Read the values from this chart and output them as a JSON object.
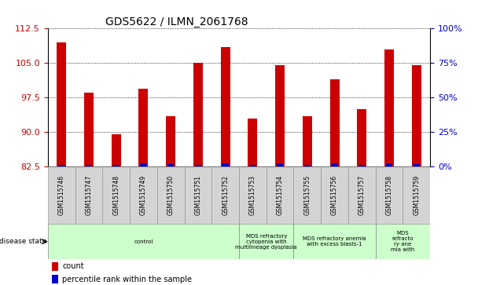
{
  "title": "GDS5622 / ILMN_2061768",
  "samples": [
    "GSM1515746",
    "GSM1515747",
    "GSM1515748",
    "GSM1515749",
    "GSM1515750",
    "GSM1515751",
    "GSM1515752",
    "GSM1515753",
    "GSM1515754",
    "GSM1515755",
    "GSM1515756",
    "GSM1515757",
    "GSM1515758",
    "GSM1515759"
  ],
  "counts": [
    109.5,
    98.5,
    89.5,
    99.5,
    93.5,
    105.0,
    108.5,
    93.0,
    104.5,
    93.5,
    101.5,
    95.0,
    108.0,
    104.5
  ],
  "percentiles": [
    1.5,
    1.5,
    1.5,
    2.5,
    2.0,
    1.5,
    2.5,
    1.5,
    2.5,
    1.5,
    2.5,
    1.5,
    2.5,
    2.0
  ],
  "ymin": 82.5,
  "ymax": 112.5,
  "yticks": [
    82.5,
    90.0,
    97.5,
    105.0,
    112.5
  ],
  "y2labels": [
    "0%",
    "25%",
    "50%",
    "75%",
    "100%"
  ],
  "bar_color": "#cc0000",
  "percentile_color": "#0000cc",
  "title_fontsize": 10,
  "tick_color_left": "#cc0000",
  "tick_color_right": "#0000cc",
  "disease_states": [
    {
      "label": "control",
      "start": 0,
      "end": 7
    },
    {
      "label": "MDS refractory\ncytopenia with\nmultilineage dysplasia",
      "start": 7,
      "end": 9
    },
    {
      "label": "MDS refractory anemia\nwith excess blasts-1",
      "start": 9,
      "end": 12
    },
    {
      "label": "MDS\nrefracto\nry ane\nmia with",
      "start": 12,
      "end": 14
    }
  ],
  "disease_box_color": "#ccffcc",
  "sample_box_color": "#d4d4d4",
  "bar_width": 0.35,
  "pct_bar_width": 0.25,
  "legend_count_label": "count",
  "legend_percentile_label": "percentile rank within the sample"
}
